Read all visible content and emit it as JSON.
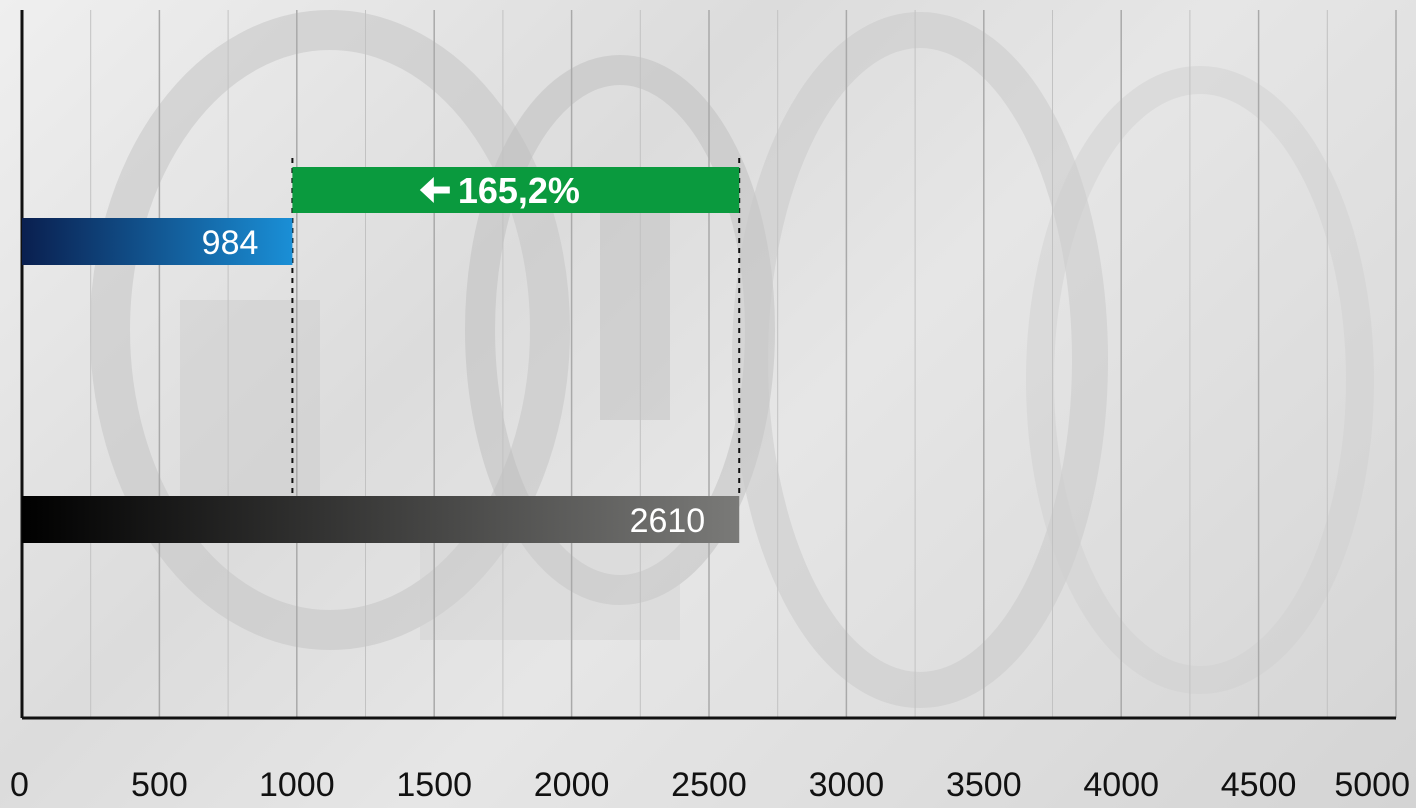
{
  "chart_data": {
    "type": "bar",
    "orientation": "horizontal",
    "title": "",
    "xlabel": "",
    "ylabel": "",
    "xlim": [
      0,
      5000
    ],
    "x_ticks": [
      0,
      500,
      1000,
      1500,
      2000,
      2500,
      3000,
      3500,
      4000,
      4500,
      5000
    ],
    "x_tick_labels": [
      "0",
      "500",
      "1000",
      "1500",
      "2000",
      "2500",
      "3000",
      "3500",
      "4000",
      "4500",
      "5000"
    ],
    "grid": "vertical",
    "series": [
      {
        "values": [
          984
        ],
        "label": "984",
        "color_start": "#0a1f4f",
        "color_end": "#1a8fd6"
      },
      {
        "values": [
          2610
        ],
        "label": "2610",
        "color_start": "#000000",
        "color_end": "#7a7a78"
      }
    ],
    "comparison": {
      "from": 984,
      "to": 2610,
      "label": "165,2%",
      "arrow": "left",
      "color": "#0a9a3e"
    }
  }
}
